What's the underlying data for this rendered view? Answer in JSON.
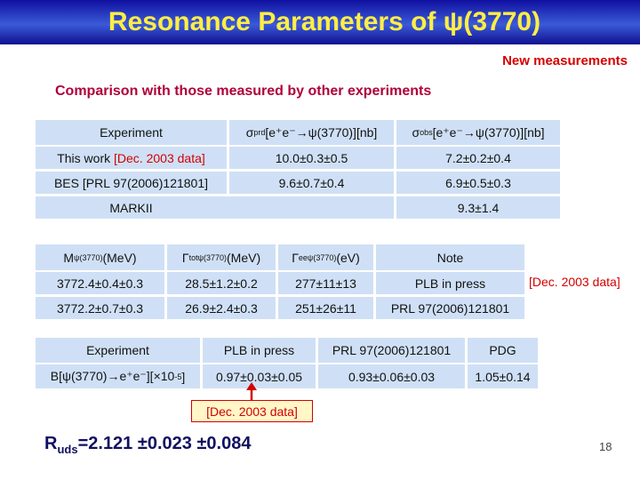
{
  "header": {
    "title": "Resonance Parameters of ψ(3770)",
    "tag": "New measurements",
    "subtitle": "Comparison with those measured by other experiments"
  },
  "cross_section_table": {
    "header": [
      "Experiment",
      {
        "symbol": "σ",
        "sup": "prd",
        "rest": "[e⁺e⁻→ψ(3770)][nb]"
      },
      {
        "symbol": "σ",
        "sup": "obs",
        "rest": "[e⁺e⁻→ψ(3770)][nb]"
      }
    ],
    "rows": [
      {
        "experiment": "This work",
        "note": "[Dec. 2003 data]",
        "sigma_prd": "10.0±0.3±0.5",
        "sigma_obs": "7.2±0.2±0.4"
      },
      {
        "experiment": "BES [PRL 97(2006)121801]",
        "sigma_prd": "9.6±0.7±0.4",
        "sigma_obs": "6.9±0.5±0.3"
      },
      {
        "experiment": "MARKII",
        "sigma_obs": "9.3±1.4"
      }
    ]
  },
  "width_table": {
    "header": [
      {
        "symbol": "M",
        "sub": "ψ(3770)",
        "unit": "(MeV)"
      },
      {
        "symbol": "Γ",
        "sup": "tot",
        "sub": "ψ(3770)",
        "unit": "(MeV)"
      },
      {
        "symbol": "Γ",
        "sup": "ee",
        "sub": "ψ(3770)",
        "unit": "(eV)"
      },
      "Note"
    ],
    "rows": [
      [
        "3772.4±0.4±0.3",
        "28.5±1.2±0.2",
        "277±11±13",
        "PLB in press"
      ],
      [
        "3772.2±0.7±0.3",
        "26.9±2.4±0.3",
        "251±26±11",
        "PRL 97(2006)121801"
      ]
    ],
    "side_note": "[Dec. 2003 data]"
  },
  "branching_table": {
    "header": [
      "Experiment",
      "PLB in press",
      "PRL 97(2006)121801",
      "PDG"
    ],
    "label": {
      "text": "B[ψ(3770)→e⁺e⁻][×10",
      "sup": "-5",
      "end": "]"
    },
    "values": [
      "0.97±0.03±0.05",
      "0.93±0.06±0.03",
      "1.05±0.14"
    ],
    "annotation": "[Dec. 2003 data]"
  },
  "footer": {
    "r_symbol": "R",
    "r_sub": "uds",
    "r_value": "=2.121 ±0.023 ±0.084",
    "page": "18"
  }
}
